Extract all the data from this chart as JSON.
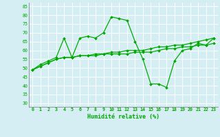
{
  "title": "",
  "xlabel": "Humidité relative (%)",
  "ylabel": "",
  "bg_color": "#d4eef4",
  "grid_color": "#ffffff",
  "line_color": "#00aa00",
  "xlim": [
    -0.5,
    23.5
  ],
  "ylim": [
    28,
    87
  ],
  "yticks": [
    30,
    35,
    40,
    45,
    50,
    55,
    60,
    65,
    70,
    75,
    80,
    85
  ],
  "xticks": [
    0,
    1,
    2,
    3,
    4,
    5,
    6,
    7,
    8,
    9,
    10,
    11,
    12,
    13,
    14,
    15,
    16,
    17,
    18,
    19,
    20,
    21,
    22,
    23
  ],
  "line1": [
    49,
    52,
    54,
    56,
    67,
    56,
    67,
    68,
    67,
    70,
    79,
    78,
    77,
    65,
    55,
    41,
    41,
    39,
    54,
    60,
    61,
    64,
    63,
    67
  ],
  "line2": [
    49,
    51,
    53,
    55,
    56,
    56,
    57,
    57,
    57,
    58,
    58,
    58,
    58,
    59,
    59,
    59,
    60,
    61,
    61,
    62,
    62,
    63,
    63,
    64
  ],
  "line3": [
    49,
    51,
    53,
    55,
    56,
    56,
    57,
    57,
    58,
    58,
    59,
    59,
    60,
    60,
    60,
    61,
    62,
    62,
    63,
    63,
    64,
    65,
    66,
    67
  ]
}
